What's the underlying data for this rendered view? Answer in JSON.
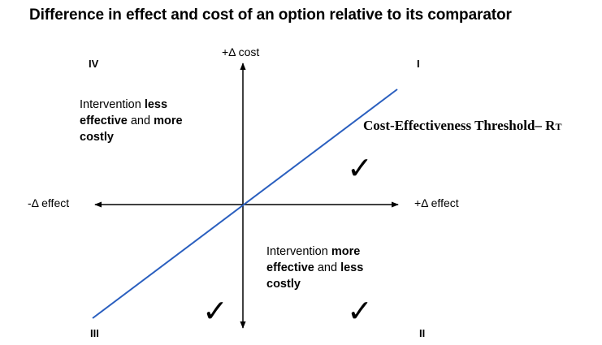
{
  "title": "Difference in effect and cost of an option relative to its comparator",
  "axes": {
    "y_positive_label": "+Δ cost",
    "x_positive_label": "+Δ effect",
    "x_negative_label": "-Δ effect"
  },
  "quadrants": {
    "I": "I",
    "II": "II",
    "III": "III",
    "IV": "IV"
  },
  "descriptions": {
    "upper_left": {
      "pre": "Intervention ",
      "bold1": "less effective",
      "mid": " and ",
      "bold2": "more costly"
    },
    "lower_right": {
      "pre": "Intervention ",
      "bold1": "more effective",
      "mid": " and ",
      "bold2": "less costly"
    }
  },
  "threshold": {
    "label": "Cost-Effectiveness Threshold– R",
    "subscript": "T",
    "line_color": "#2a5fbf"
  },
  "checkmark": "✓"
}
